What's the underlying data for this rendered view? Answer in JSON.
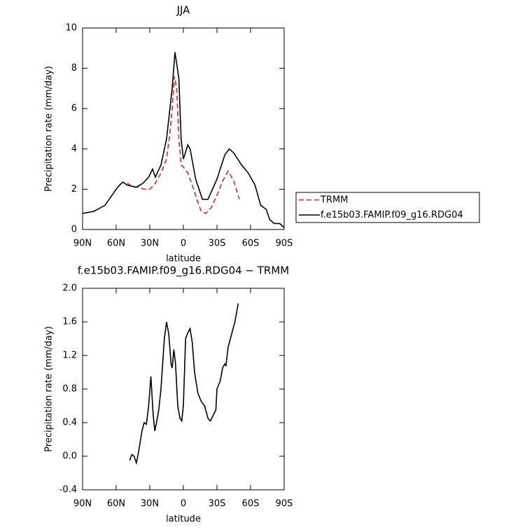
{
  "chart_data": [
    {
      "type": "line",
      "title": "JJA",
      "xlabel": "latitude",
      "ylabel": "Precipitation rate (mm/day)",
      "xlim": [
        90,
        -90
      ],
      "xticks": [
        {
          "value": 90,
          "label": "90N"
        },
        {
          "value": 60,
          "label": "60N"
        },
        {
          "value": 30,
          "label": "30N"
        },
        0,
        {
          "value": -30,
          "label": "30S"
        },
        {
          "value": -60,
          "label": "60S"
        },
        {
          "value": -90,
          "label": "90S"
        }
      ],
      "ylim": [
        0,
        10
      ],
      "yticks": [
        0,
        2,
        4,
        6,
        8,
        10
      ],
      "legend": "outside-right",
      "series": [
        {
          "name": "TRMM",
          "color": "#e8231e",
          "dash": true,
          "x": [
            50,
            45,
            40,
            35,
            30,
            25,
            20,
            15,
            12,
            10,
            8,
            6,
            4,
            2,
            0,
            -4,
            -8,
            -12,
            -16,
            -20,
            -25,
            -30,
            -35,
            -40,
            -45,
            -50
          ],
          "values": [
            2.3,
            2.1,
            2.1,
            2.0,
            2.0,
            2.3,
            2.8,
            3.5,
            4.8,
            6.0,
            7.6,
            7.0,
            4.5,
            3.2,
            3.1,
            2.8,
            2.2,
            1.5,
            0.9,
            0.8,
            1.1,
            1.7,
            2.4,
            2.9,
            2.4,
            1.5
          ]
        },
        {
          "name": "f.e15b03.FAMIP.f09_g16.RDG04",
          "color": "#000000",
          "dash": false,
          "x": [
            90,
            80,
            70,
            65,
            60,
            57,
            54,
            50,
            42,
            36,
            31,
            27.5,
            25,
            20,
            15,
            10,
            7.5,
            4,
            2,
            0,
            -4,
            -6,
            -11,
            -17,
            -22,
            -30,
            -37,
            -41,
            -45,
            -52,
            -58,
            -64,
            -69,
            -74,
            -77,
            -81,
            -86,
            -90
          ],
          "values": [
            0.8,
            0.9,
            1.2,
            1.6,
            2.0,
            2.2,
            2.35,
            2.2,
            2.1,
            2.3,
            2.6,
            3.0,
            2.6,
            3.2,
            4.5,
            7.0,
            8.8,
            7.5,
            4.5,
            3.5,
            4.2,
            4.0,
            2.5,
            1.5,
            1.5,
            2.5,
            3.7,
            4.0,
            3.8,
            3.2,
            2.8,
            2.2,
            1.2,
            1.0,
            0.5,
            0.3,
            0.3,
            0.1
          ]
        }
      ]
    },
    {
      "type": "line",
      "title": "f.e15b03.FAMIP.f09_g16.RDG04 − TRMM",
      "xlabel": "latitude",
      "ylabel": "Precipitation rate (mm/day)",
      "xlim": [
        90,
        -90
      ],
      "xticks": [
        {
          "value": 90,
          "label": "90N"
        },
        {
          "value": 60,
          "label": "60N"
        },
        {
          "value": 30,
          "label": "30N"
        },
        0,
        {
          "value": -30,
          "label": "30S"
        },
        {
          "value": -60,
          "label": "60S"
        },
        {
          "value": -90,
          "label": "90S"
        }
      ],
      "ylim": [
        -0.4,
        2.0
      ],
      "yticks": [
        -0.4,
        {
          "value": 0,
          "label": "0.0"
        },
        0.4,
        0.8,
        1.2,
        1.6,
        {
          "value": 2,
          "label": "2.0"
        }
      ],
      "series": [
        {
          "color": "#000000",
          "dash": false,
          "x": [
            48,
            46,
            44,
            42,
            40,
            37,
            35,
            33,
            31,
            29,
            27,
            25.5,
            24,
            22,
            20,
            17,
            15,
            13,
            11,
            10,
            8.5,
            7,
            5,
            3,
            1.5,
            0,
            -2,
            -4,
            -6,
            -8,
            -10,
            -13,
            -16,
            -19,
            -22,
            -24,
            -26,
            -29,
            -30,
            -33,
            -35,
            -37,
            -38,
            -40,
            -43,
            -46,
            -49
          ],
          "values": [
            -0.05,
            0.02,
            0.0,
            -0.08,
            0.05,
            0.3,
            0.4,
            0.38,
            0.6,
            0.95,
            0.5,
            0.3,
            0.4,
            0.55,
            0.8,
            1.4,
            1.6,
            1.45,
            1.1,
            1.05,
            1.27,
            1.1,
            0.6,
            0.45,
            0.42,
            0.6,
            1.4,
            1.47,
            1.52,
            1.35,
            1.0,
            0.75,
            0.65,
            0.6,
            0.45,
            0.42,
            0.47,
            0.55,
            0.8,
            0.9,
            1.05,
            1.1,
            1.08,
            1.3,
            1.45,
            1.6,
            1.82
          ]
        }
      ]
    }
  ]
}
